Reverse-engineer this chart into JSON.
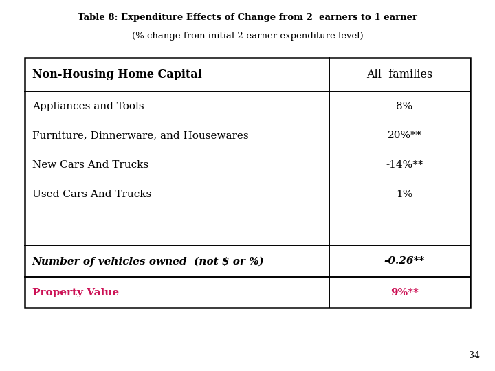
{
  "title_line1": "Table 8: Expenditure Effects of Change from 2  earners to 1 earner",
  "title_line2": "(% change from initial 2-earner expenditure level)",
  "col_headers": [
    "Non-Housing Home Capital",
    "All  families"
  ],
  "rows": [
    [
      "Appliances and Tools",
      "8%"
    ],
    [
      "Furniture, Dinnerware, and Housewares",
      "20%**"
    ],
    [
      "New Cars And Trucks",
      "-14%**"
    ],
    [
      "Used Cars And Trucks",
      "1%"
    ]
  ],
  "italic_row": [
    "Number of vehicles owned  (not $ or %)",
    "-0.26**"
  ],
  "red_row": [
    "Property Value",
    "9%**"
  ],
  "background_color": "#ffffff",
  "text_color": "#000000",
  "red_color": "#cc1155",
  "border_color": "#000000",
  "page_number": "34",
  "title_fontsize": 9.5,
  "header_fontsize": 11.5,
  "body_fontsize": 11,
  "italic_fontsize": 11,
  "red_fontsize": 11
}
